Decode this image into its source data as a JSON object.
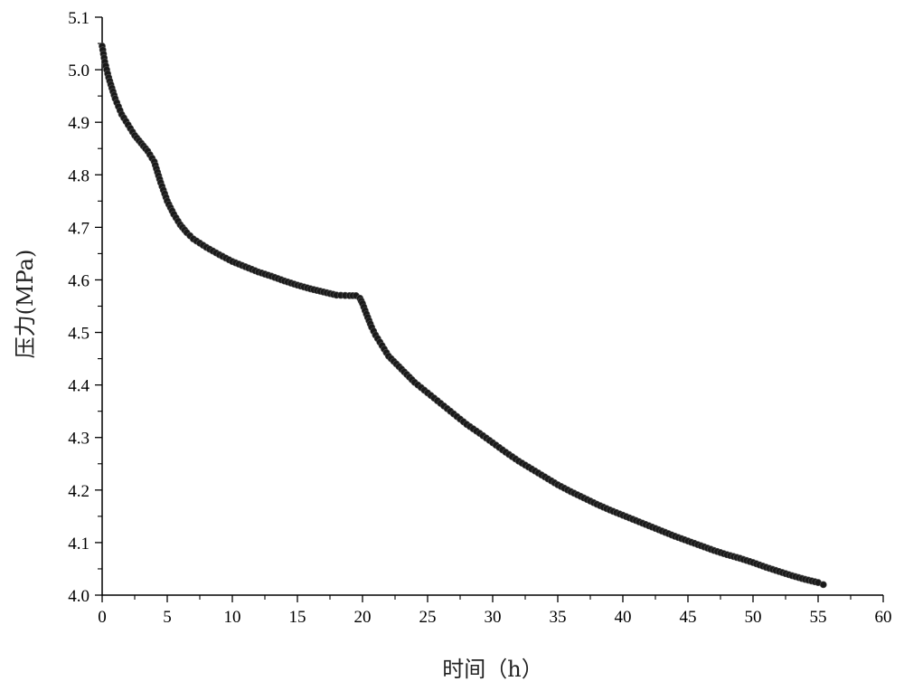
{
  "chart_data": {
    "type": "scatter",
    "xlabel": "时间（h）",
    "ylabel": "压力(MPa)",
    "xlim": [
      0,
      60
    ],
    "ylim": [
      4.0,
      5.1
    ],
    "xticks": [
      "0",
      "5",
      "10",
      "15",
      "20",
      "25",
      "30",
      "35",
      "40",
      "45",
      "50",
      "55",
      "60"
    ],
    "yticks": [
      "4.0",
      "4.1",
      "4.2",
      "4.3",
      "4.4",
      "4.5",
      "4.6",
      "4.7",
      "4.8",
      "4.9",
      "5.0",
      "5.1"
    ],
    "grid": false,
    "marker_color": "#1a1a1a",
    "series": [
      {
        "x": [
          0.0,
          0.2,
          0.5,
          1.0,
          1.5,
          2.0,
          2.5,
          3.0,
          3.5,
          4.0,
          4.5,
          5.0,
          5.5,
          6.0,
          6.5,
          7.0,
          8.0,
          9.0,
          10.0,
          11.0,
          12.0,
          13.0,
          14.0,
          15.0,
          16.0,
          17.0,
          18.0,
          19.0,
          19.5,
          19.8,
          20.0,
          20.3,
          20.7,
          21.0,
          21.5,
          22.0,
          23.0,
          24.0,
          25.0,
          26.0,
          27.0,
          28.0,
          29.0,
          30.0,
          31.0,
          32.0,
          33.0,
          34.0,
          35.0,
          36.0,
          37.0,
          38.0,
          39.0,
          40.0,
          41.0,
          42.0,
          43.0,
          44.0,
          45.0,
          46.0,
          47.0,
          48.0,
          49.0,
          50.0,
          51.0,
          52.0,
          53.0,
          54.0,
          55.0,
          55.4
        ],
        "y": [
          5.045,
          5.015,
          4.985,
          4.945,
          4.915,
          4.895,
          4.875,
          4.86,
          4.845,
          4.825,
          4.785,
          4.75,
          4.725,
          4.705,
          4.69,
          4.678,
          4.662,
          4.648,
          4.635,
          4.625,
          4.615,
          4.607,
          4.598,
          4.59,
          4.583,
          4.577,
          4.571,
          4.57,
          4.57,
          4.565,
          4.555,
          4.535,
          4.51,
          4.495,
          4.475,
          4.455,
          4.43,
          4.405,
          4.385,
          4.365,
          4.345,
          4.325,
          4.308,
          4.29,
          4.272,
          4.255,
          4.24,
          4.225,
          4.21,
          4.197,
          4.185,
          4.173,
          4.162,
          4.152,
          4.142,
          4.132,
          4.122,
          4.112,
          4.103,
          4.094,
          4.085,
          4.077,
          4.07,
          4.062,
          4.053,
          4.045,
          4.037,
          4.03,
          4.024,
          4.02
        ]
      }
    ]
  }
}
